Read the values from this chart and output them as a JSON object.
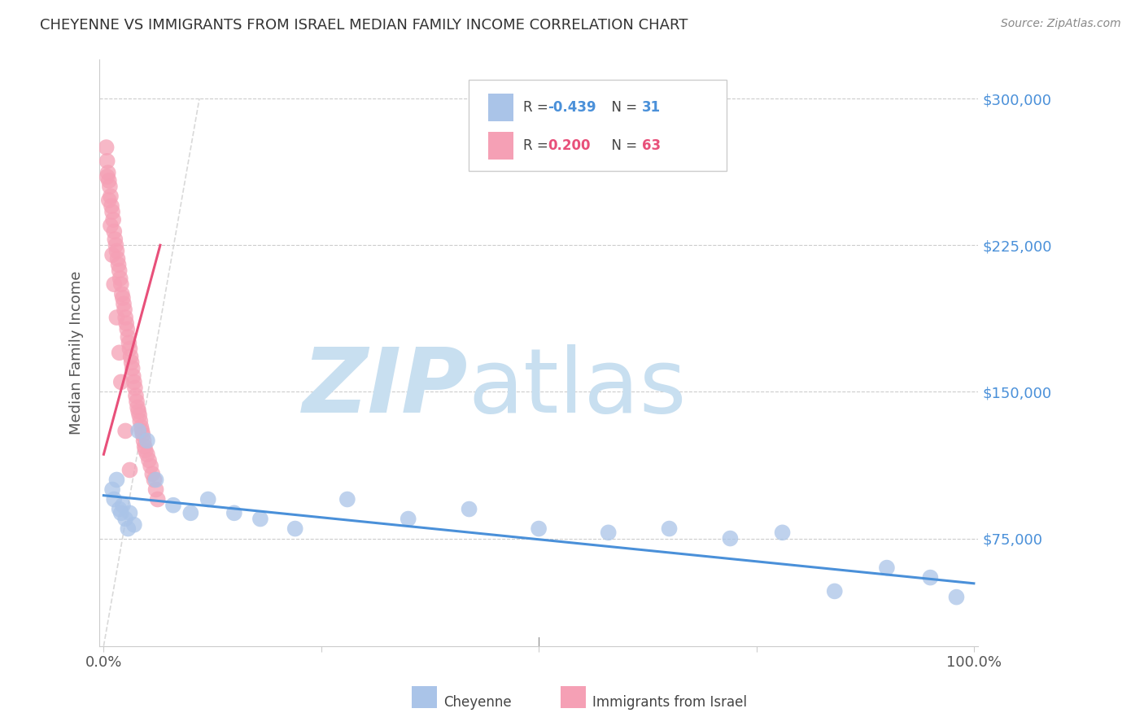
{
  "title": "CHEYENNE VS IMMIGRANTS FROM ISRAEL MEDIAN FAMILY INCOME CORRELATION CHART",
  "source": "Source: ZipAtlas.com",
  "ylabel": "Median Family Income",
  "ytick_values": [
    75000,
    150000,
    225000,
    300000
  ],
  "ytick_labels": [
    "$75,000",
    "$150,000",
    "$225,000",
    "$300,000"
  ],
  "ylim": [
    20000,
    320000
  ],
  "xlim": [
    -0.005,
    1.005
  ],
  "cheyenne_color": "#aac4e8",
  "cheyenne_line_color": "#4a90d9",
  "israel_color": "#f5a0b5",
  "israel_line_color": "#e8507a",
  "diagonal_color": "#d0d0d0",
  "background_color": "#ffffff",
  "watermark_zip_color": "#c8dff0",
  "watermark_atlas_color": "#c8dff0",
  "cheyenne_x": [
    0.01,
    0.012,
    0.015,
    0.018,
    0.02,
    0.022,
    0.025,
    0.028,
    0.03,
    0.035,
    0.04,
    0.05,
    0.06,
    0.08,
    0.1,
    0.12,
    0.15,
    0.18,
    0.22,
    0.28,
    0.35,
    0.42,
    0.5,
    0.58,
    0.65,
    0.72,
    0.78,
    0.84,
    0.9,
    0.95,
    0.98
  ],
  "cheyenne_y": [
    100000,
    95000,
    105000,
    90000,
    88000,
    92000,
    85000,
    80000,
    88000,
    82000,
    130000,
    125000,
    105000,
    92000,
    88000,
    95000,
    88000,
    85000,
    80000,
    95000,
    85000,
    90000,
    80000,
    78000,
    80000,
    75000,
    78000,
    48000,
    60000,
    55000,
    45000
  ],
  "israel_x": [
    0.003,
    0.004,
    0.005,
    0.006,
    0.007,
    0.008,
    0.009,
    0.01,
    0.011,
    0.012,
    0.013,
    0.014,
    0.015,
    0.016,
    0.017,
    0.018,
    0.019,
    0.02,
    0.021,
    0.022,
    0.023,
    0.024,
    0.025,
    0.026,
    0.027,
    0.028,
    0.029,
    0.03,
    0.031,
    0.032,
    0.033,
    0.034,
    0.035,
    0.036,
    0.037,
    0.038,
    0.039,
    0.04,
    0.041,
    0.042,
    0.043,
    0.044,
    0.045,
    0.046,
    0.047,
    0.048,
    0.05,
    0.052,
    0.054,
    0.056,
    0.058,
    0.06,
    0.062,
    0.004,
    0.006,
    0.008,
    0.01,
    0.012,
    0.015,
    0.018,
    0.02,
    0.025,
    0.03
  ],
  "israel_y": [
    275000,
    268000,
    262000,
    258000,
    255000,
    250000,
    245000,
    242000,
    238000,
    232000,
    228000,
    225000,
    222000,
    218000,
    215000,
    212000,
    208000,
    205000,
    200000,
    198000,
    195000,
    192000,
    188000,
    185000,
    182000,
    178000,
    175000,
    172000,
    168000,
    165000,
    162000,
    158000,
    155000,
    152000,
    148000,
    145000,
    142000,
    140000,
    138000,
    135000,
    132000,
    130000,
    128000,
    125000,
    122000,
    120000,
    118000,
    115000,
    112000,
    108000,
    105000,
    100000,
    95000,
    260000,
    248000,
    235000,
    220000,
    205000,
    188000,
    170000,
    155000,
    130000,
    110000
  ],
  "cheyenne_trend_x": [
    0.0,
    1.0
  ],
  "cheyenne_trend_y": [
    97000,
    52000
  ],
  "israel_trend_x": [
    0.0,
    0.065
  ],
  "israel_trend_y": [
    118000,
    225000
  ]
}
